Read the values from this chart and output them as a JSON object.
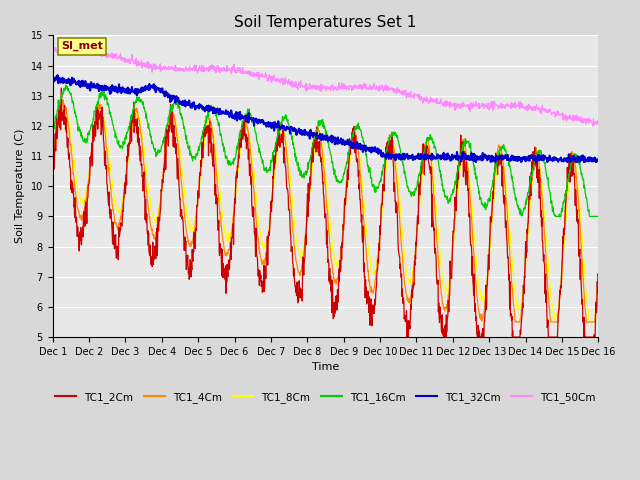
{
  "title": "Soil Temperatures Set 1",
  "xlabel": "Time",
  "ylabel": "Soil Temperature (C)",
  "ylim": [
    5.0,
    15.0
  ],
  "yticks": [
    5.0,
    6.0,
    7.0,
    8.0,
    9.0,
    10.0,
    11.0,
    12.0,
    13.0,
    14.0,
    15.0
  ],
  "colors": {
    "TC1_2Cm": "#cc0000",
    "TC1_4Cm": "#ff8800",
    "TC1_8Cm": "#ffff00",
    "TC1_16Cm": "#00cc00",
    "TC1_32Cm": "#0000cc",
    "TC1_50Cm": "#ff88ff"
  },
  "background_color": "#d8d8d8",
  "plot_background": "#e8e8e8",
  "annotation_text": "SI_met",
  "annotation_bg": "#ffff88",
  "annotation_border": "#888800",
  "n_points": 1440,
  "x_start": 0,
  "x_end": 15,
  "xtick_positions": [
    0,
    1,
    2,
    3,
    4,
    5,
    6,
    7,
    8,
    9,
    10,
    11,
    12,
    13,
    14,
    15
  ],
  "xtick_labels": [
    "Dec 1",
    "Dec 2",
    "Dec 3",
    "Dec 4",
    "Dec 5",
    "Dec 6",
    "Dec 7",
    "Dec 8",
    "Dec 9",
    "Dec 10",
    "Dec 11",
    "Dec 12",
    "Dec 13",
    "Dec 14",
    "Dec 15",
    "Dec 16"
  ],
  "figsize": [
    6.4,
    4.8
  ],
  "dpi": 100
}
